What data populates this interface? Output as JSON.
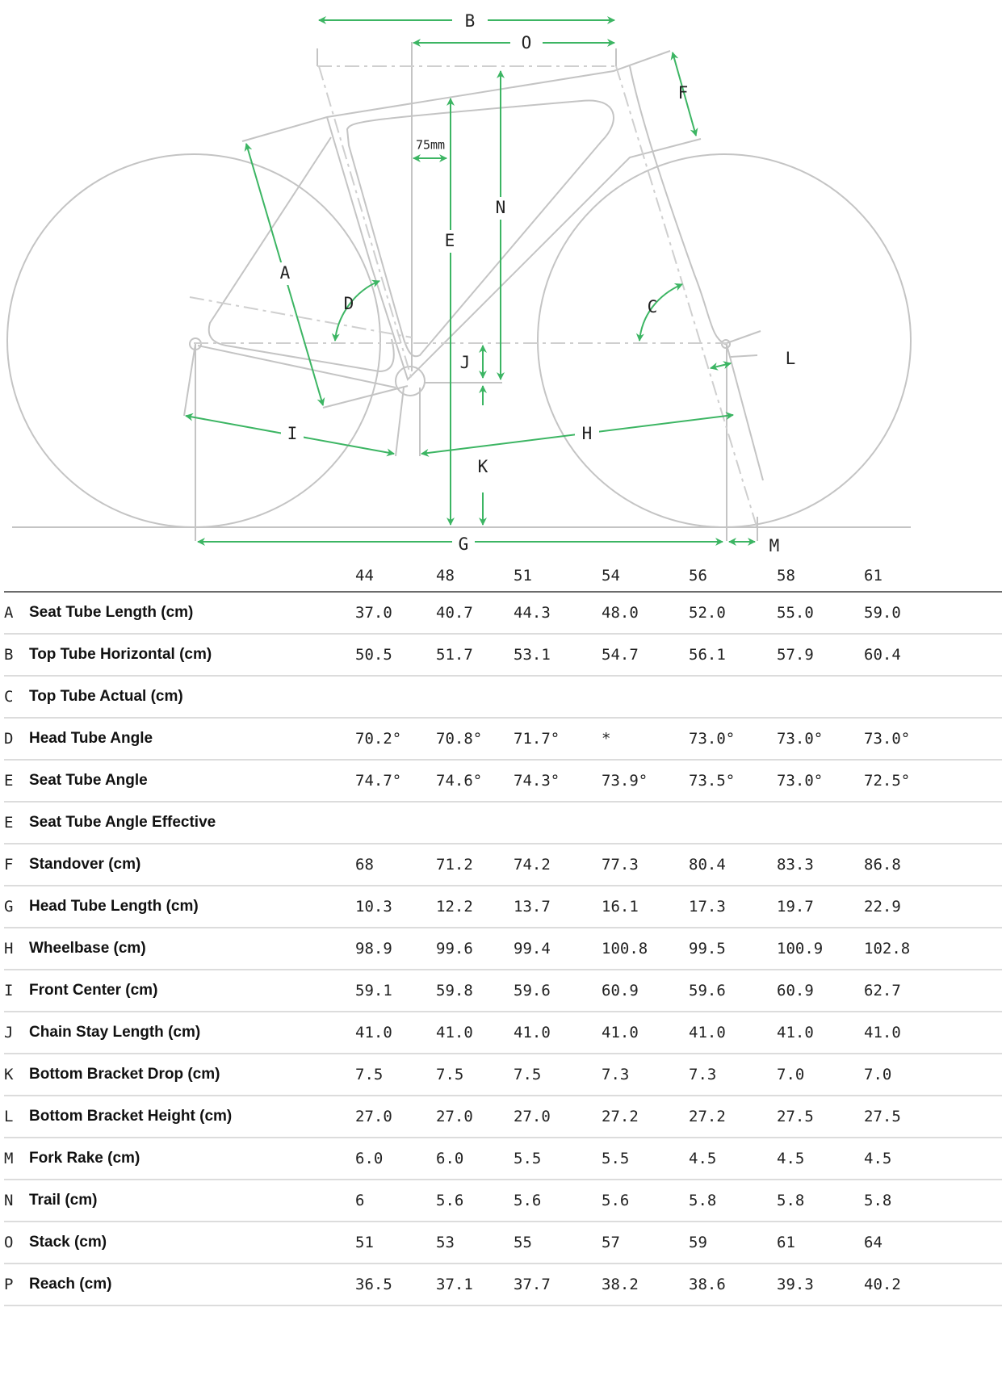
{
  "diagram": {
    "accent_color": "#3cb563",
    "labels": {
      "A": "A",
      "B": "B",
      "C": "C",
      "D": "D",
      "E": "E",
      "F": "F",
      "G": "G",
      "H": "H",
      "I": "I",
      "J": "J",
      "K": "K",
      "L": "L",
      "M": "M",
      "N": "N",
      "O": "O",
      "offset": "75mm"
    }
  },
  "table": {
    "sizes": [
      "44",
      "48",
      "51",
      "54",
      "56",
      "58",
      "61"
    ],
    "rows": [
      {
        "letter": "A",
        "name": "Seat Tube Length (cm)",
        "values": [
          "37.0",
          "40.7",
          "44.3",
          "48.0",
          "52.0",
          "55.0",
          "59.0"
        ]
      },
      {
        "letter": "B",
        "name": "Top Tube Horizontal (cm)",
        "values": [
          "50.5",
          "51.7",
          "53.1",
          "54.7",
          "56.1",
          "57.9",
          "60.4"
        ]
      },
      {
        "letter": "C",
        "name": "Top Tube Actual (cm)",
        "values": [
          "",
          "",
          "",
          "",
          "",
          "",
          ""
        ]
      },
      {
        "letter": "D",
        "name": "Head Tube Angle",
        "values": [
          "70.2°",
          "70.8°",
          "71.7°",
          "*",
          "73.0°",
          "73.0°",
          "73.0°"
        ]
      },
      {
        "letter": "E",
        "name": "Seat Tube Angle",
        "values": [
          "74.7°",
          "74.6°",
          "74.3°",
          "73.9°",
          "73.5°",
          "73.0°",
          "72.5°"
        ]
      },
      {
        "letter": "E",
        "name": "Seat Tube Angle Effective",
        "values": [
          "",
          "",
          "",
          "",
          "",
          "",
          ""
        ]
      },
      {
        "letter": "F",
        "name": "Standover (cm)",
        "values": [
          "68",
          "71.2",
          "74.2",
          "77.3",
          "80.4",
          "83.3",
          "86.8"
        ]
      },
      {
        "letter": "G",
        "name": "Head Tube Length (cm)",
        "values": [
          "10.3",
          "12.2",
          "13.7",
          "16.1",
          "17.3",
          "19.7",
          "22.9"
        ]
      },
      {
        "letter": "H",
        "name": "Wheelbase (cm)",
        "values": [
          "98.9",
          "99.6",
          "99.4",
          "100.8",
          "99.5",
          "100.9",
          "102.8"
        ]
      },
      {
        "letter": "I",
        "name": "Front Center (cm)",
        "values": [
          "59.1",
          "59.8",
          "59.6",
          "60.9",
          "59.6",
          "60.9",
          "62.7"
        ]
      },
      {
        "letter": "J",
        "name": "Chain Stay Length (cm)",
        "values": [
          "41.0",
          "41.0",
          "41.0",
          "41.0",
          "41.0",
          "41.0",
          "41.0"
        ]
      },
      {
        "letter": "K",
        "name": "Bottom Bracket Drop (cm)",
        "values": [
          "7.5",
          "7.5",
          "7.5",
          "7.3",
          "7.3",
          "7.0",
          "7.0"
        ]
      },
      {
        "letter": "L",
        "name": "Bottom Bracket Height (cm)",
        "values": [
          "27.0",
          "27.0",
          "27.0",
          "27.2",
          "27.2",
          "27.5",
          "27.5"
        ]
      },
      {
        "letter": "M",
        "name": "Fork Rake (cm)",
        "values": [
          "6.0",
          "6.0",
          "5.5",
          "5.5",
          "4.5",
          "4.5",
          "4.5"
        ]
      },
      {
        "letter": "N",
        "name": "Trail (cm)",
        "values": [
          "6",
          "5.6",
          "5.6",
          "5.6",
          "5.8",
          "5.8",
          "5.8"
        ]
      },
      {
        "letter": "O",
        "name": "Stack (cm)",
        "values": [
          "51",
          "53",
          "55",
          "57",
          "59",
          "61",
          "64"
        ]
      },
      {
        "letter": "P",
        "name": "Reach (cm)",
        "values": [
          "36.5",
          "37.1",
          "37.7",
          "38.2",
          "38.6",
          "39.3",
          "40.2"
        ]
      }
    ]
  }
}
